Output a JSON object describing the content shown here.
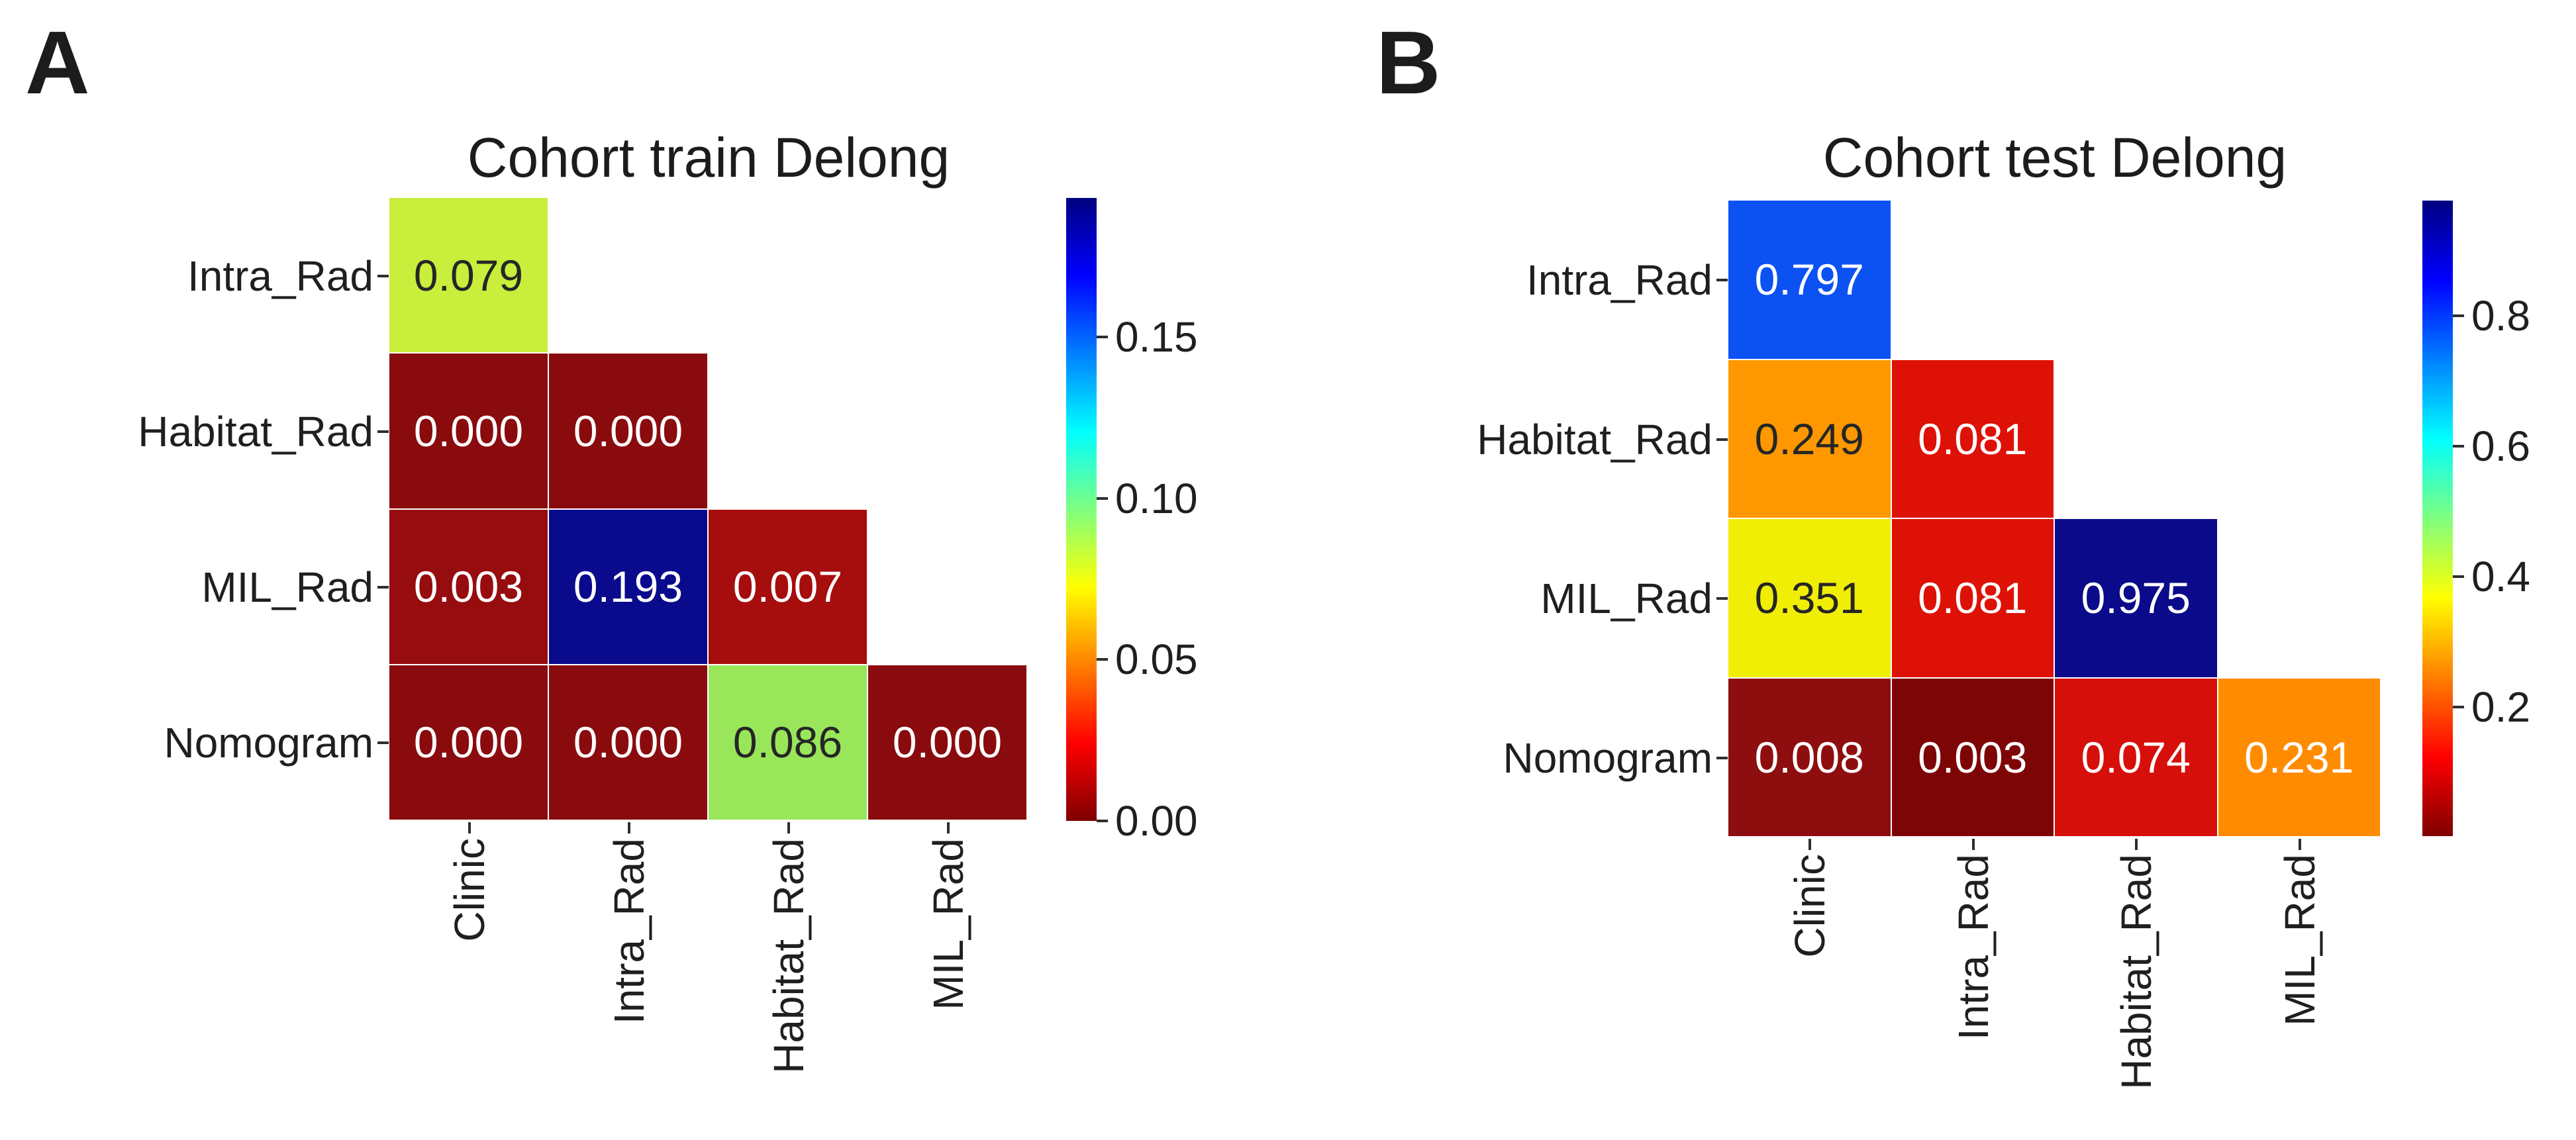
{
  "figure": {
    "panels": [
      {
        "letter": "A",
        "title": "Cohort train Delong",
        "row_labels": [
          "Intra_Rad",
          "Habitat_Rad",
          "MIL_Rad",
          "Nomogram"
        ],
        "col_labels": [
          "Clinic",
          "Intra_Rad",
          "Habitat_Rad",
          "MIL_Rad"
        ],
        "cells": [
          [
            {
              "text": "0.079",
              "bg": "#c9ee3c",
              "fg": "#262626"
            }
          ],
          [
            {
              "text": "0.000",
              "bg": "#8a0b0e",
              "fg": "#ffffff"
            },
            {
              "text": "0.000",
              "bg": "#8a0b0e",
              "fg": "#ffffff"
            }
          ],
          [
            {
              "text": "0.003",
              "bg": "#970c0e",
              "fg": "#ffffff"
            },
            {
              "text": "0.193",
              "bg": "#0a0a8c",
              "fg": "#ffffff"
            },
            {
              "text": "0.007",
              "bg": "#a60d0d",
              "fg": "#ffffff"
            }
          ],
          [
            {
              "text": "0.000",
              "bg": "#8a0b0e",
              "fg": "#ffffff"
            },
            {
              "text": "0.000",
              "bg": "#8a0b0e",
              "fg": "#ffffff"
            },
            {
              "text": "0.086",
              "bg": "#99e65a",
              "fg": "#262626"
            },
            {
              "text": "0.000",
              "bg": "#8a0b0e",
              "fg": "#ffffff"
            }
          ]
        ],
        "colorbar": {
          "tick_labels": [
            "0.15",
            "0.10",
            "0.05",
            "0.00"
          ],
          "gradient_stops": [
            "#7f0000",
            "#ff0000",
            "#ffff00",
            "#00ffff",
            "#0000ff",
            "#000080"
          ]
        }
      },
      {
        "letter": "B",
        "title": "Cohort test Delong",
        "row_labels": [
          "Intra_Rad",
          "Habitat_Rad",
          "MIL_Rad",
          "Nomogram"
        ],
        "col_labels": [
          "Clinic",
          "Intra_Rad",
          "Habitat_Rad",
          "MIL_Rad"
        ],
        "cells": [
          [
            {
              "text": "0.797",
              "bg": "#0c52f2",
              "fg": "#ffffff"
            }
          ],
          [
            {
              "text": "0.249",
              "bg": "#ff9800",
              "fg": "#262626"
            },
            {
              "text": "0.081",
              "bg": "#dd1106",
              "fg": "#ffffff"
            }
          ],
          [
            {
              "text": "0.351",
              "bg": "#f1ee06",
              "fg": "#262626"
            },
            {
              "text": "0.081",
              "bg": "#dd1106",
              "fg": "#ffffff"
            },
            {
              "text": "0.975",
              "bg": "#0a0a8a",
              "fg": "#ffffff"
            }
          ],
          [
            {
              "text": "0.008",
              "bg": "#8e0e10",
              "fg": "#ffffff"
            },
            {
              "text": "0.003",
              "bg": "#7e0506",
              "fg": "#ffffff"
            },
            {
              "text": "0.074",
              "bg": "#d60f0b",
              "fg": "#ffffff"
            },
            {
              "text": "0.231",
              "bg": "#ff8c00",
              "fg": "#ffffff"
            }
          ]
        ],
        "colorbar": {
          "tick_labels": [
            "0.8",
            "0.6",
            "0.4",
            "0.2"
          ],
          "gradient_stops": [
            "#7f0000",
            "#ff0000",
            "#ffff00",
            "#00ffff",
            "#0000ff",
            "#000080"
          ]
        }
      }
    ]
  },
  "chart_data": [
    {
      "type": "heatmap",
      "panel_letter": "A",
      "title": "Cohort train Delong",
      "shape": "lower-triangle-with-diagonal",
      "rows": [
        "Intra_Rad",
        "Habitat_Rad",
        "MIL_Rad",
        "Nomogram"
      ],
      "cols": [
        "Clinic",
        "Intra_Rad",
        "Habitat_Rad",
        "MIL_Rad"
      ],
      "values": [
        [
          0.079,
          null,
          null,
          null
        ],
        [
          0.0,
          0.0,
          null,
          null
        ],
        [
          0.003,
          0.193,
          0.007,
          null
        ],
        [
          0.0,
          0.0,
          0.086,
          0.0
        ]
      ],
      "annotation_format": "3-decimals",
      "colormap": "jet_reversed",
      "vmin": 0.0,
      "vmax": 0.193,
      "colorbar_ticks": [
        0.15,
        0.1,
        0.05,
        0.0
      ],
      "colorbar_position": "right",
      "grid": "off"
    },
    {
      "type": "heatmap",
      "panel_letter": "B",
      "title": "Cohort test Delong",
      "shape": "lower-triangle-with-diagonal",
      "rows": [
        "Intra_Rad",
        "Habitat_Rad",
        "MIL_Rad",
        "Nomogram"
      ],
      "cols": [
        "Clinic",
        "Intra_Rad",
        "Habitat_Rad",
        "MIL_Rad"
      ],
      "values": [
        [
          0.797,
          null,
          null,
          null
        ],
        [
          0.249,
          0.081,
          null,
          null
        ],
        [
          0.351,
          0.081,
          0.975,
          null
        ],
        [
          0.008,
          0.003,
          0.074,
          0.231
        ]
      ],
      "annotation_format": "3-decimals",
      "colormap": "jet_reversed",
      "vmin": 0.003,
      "vmax": 0.975,
      "colorbar_ticks": [
        0.8,
        0.6,
        0.4,
        0.2
      ],
      "colorbar_position": "right",
      "grid": "off"
    }
  ]
}
